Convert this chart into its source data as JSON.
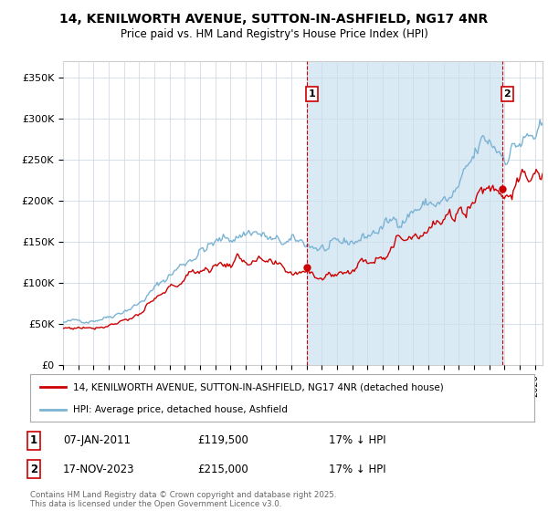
{
  "title": "14, KENILWORTH AVENUE, SUTTON-IN-ASHFIELD, NG17 4NR",
  "subtitle": "Price paid vs. HM Land Registry's House Price Index (HPI)",
  "ylabel_ticks": [
    "£0",
    "£50K",
    "£100K",
    "£150K",
    "£200K",
    "£250K",
    "£300K",
    "£350K"
  ],
  "ytick_values": [
    0,
    50000,
    100000,
    150000,
    200000,
    250000,
    300000,
    350000
  ],
  "ylim": [
    0,
    370000
  ],
  "xlim_start": 1995.0,
  "xlim_end": 2026.5,
  "hpi_color": "#7ab3d4",
  "hpi_fill_color": "#daeaf5",
  "price_color": "#cc0000",
  "marker1_x": 2011.03,
  "marker1_y": 119500,
  "marker1_label": "1",
  "marker2_x": 2023.88,
  "marker2_y": 215000,
  "marker2_label": "2",
  "annotation1_date": "07-JAN-2011",
  "annotation1_price": "£119,500",
  "annotation1_hpi": "17% ↓ HPI",
  "annotation2_date": "17-NOV-2023",
  "annotation2_price": "£215,000",
  "annotation2_hpi": "17% ↓ HPI",
  "legend_line1": "14, KENILWORTH AVENUE, SUTTON-IN-ASHFIELD, NG17 4NR (detached house)",
  "legend_line2": "HPI: Average price, detached house, Ashfield",
  "footnote": "Contains HM Land Registry data © Crown copyright and database right 2025.\nThis data is licensed under the Open Government Licence v3.0.",
  "background_color": "#ffffff",
  "plot_background": "#ffffff",
  "grid_color": "#d0dce8"
}
